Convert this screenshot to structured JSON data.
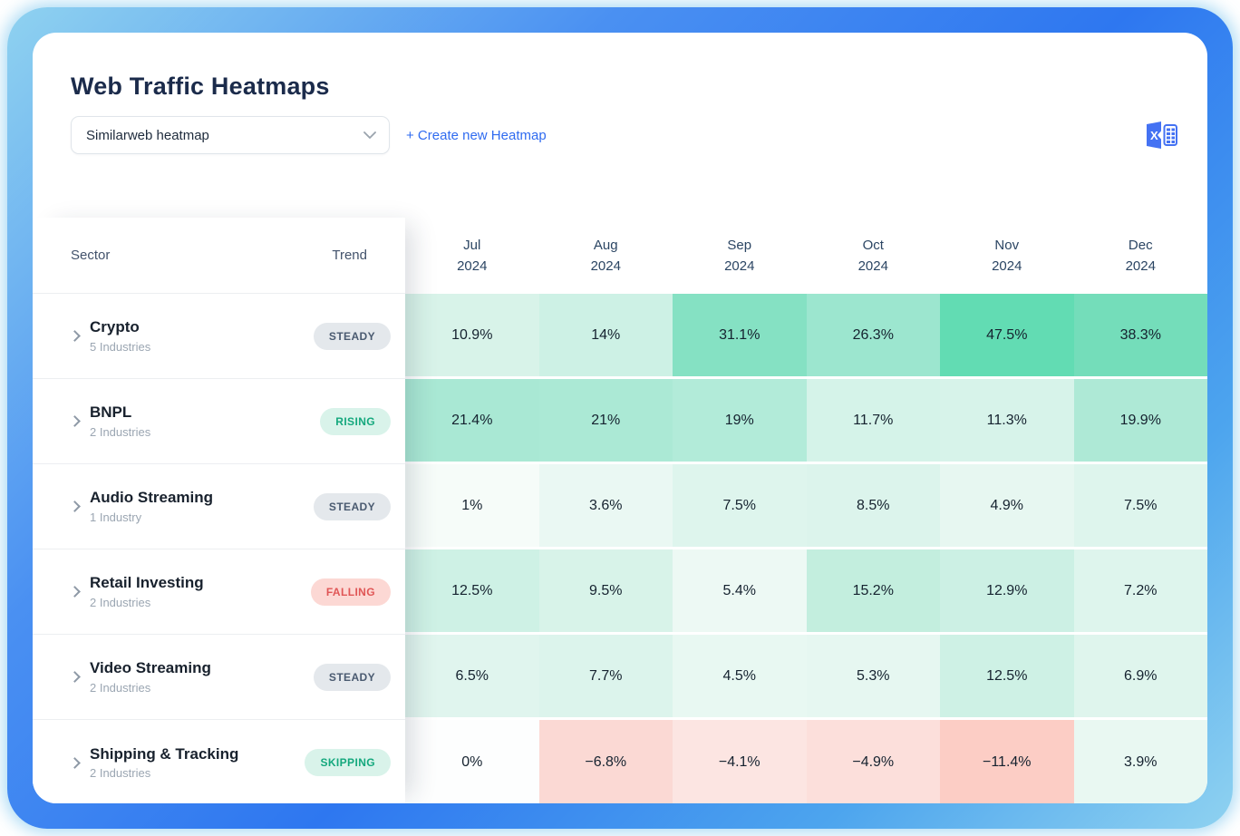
{
  "header": {
    "title": "Web Traffic Heatmaps",
    "selector_value": "Similarweb heatmap",
    "create_link": "+ Create new Heatmap",
    "export_icon": "excel-icon",
    "accent_blue": "#2f6bf0",
    "excel_icon_color": "#4472f3"
  },
  "table": {
    "sector_col_label": "Sector",
    "trend_col_label": "Trend",
    "months": [
      {
        "label": "Jul",
        "year": "2024"
      },
      {
        "label": "Aug",
        "year": "2024"
      },
      {
        "label": "Sep",
        "year": "2024"
      },
      {
        "label": "Oct",
        "year": "2024"
      },
      {
        "label": "Nov",
        "year": "2024"
      },
      {
        "label": "Dec",
        "year": "2024"
      }
    ],
    "rows": [
      {
        "sector": "Crypto",
        "industries": "5 Industries",
        "trend": {
          "label": "STEADY",
          "type": "steady"
        },
        "cells": [
          {
            "value": "10.9%",
            "color": "#d8f3e9"
          },
          {
            "value": "14%",
            "color": "#cdf1e5"
          },
          {
            "value": "31.1%",
            "color": "#85e1c3"
          },
          {
            "value": "26.3%",
            "color": "#9ce6cf"
          },
          {
            "value": "47.5%",
            "color": "#62dcb3"
          },
          {
            "value": "38.3%",
            "color": "#74ddba"
          }
        ]
      },
      {
        "sector": "BNPL",
        "industries": "2 Industries",
        "trend": {
          "label": "RISING",
          "type": "rising"
        },
        "cells": [
          {
            "value": "21.4%",
            "color": "#a9e8d4"
          },
          {
            "value": "21%",
            "color": "#abe9d5"
          },
          {
            "value": "19%",
            "color": "#b2ebd9"
          },
          {
            "value": "11.7%",
            "color": "#d5f3e9"
          },
          {
            "value": "11.3%",
            "color": "#d7f3ea"
          },
          {
            "value": "19.9%",
            "color": "#aee9d6"
          }
        ]
      },
      {
        "sector": "Audio Streaming",
        "industries": "1 Industry",
        "trend": {
          "label": "STEADY",
          "type": "steady"
        },
        "cells": [
          {
            "value": "1%",
            "color": "#f6fcf9"
          },
          {
            "value": "3.6%",
            "color": "#eaf8f3"
          },
          {
            "value": "7.5%",
            "color": "#def5ed"
          },
          {
            "value": "8.5%",
            "color": "#dcf4ec"
          },
          {
            "value": "4.9%",
            "color": "#e7f7f1"
          },
          {
            "value": "7.5%",
            "color": "#def5ed"
          }
        ]
      },
      {
        "sector": "Retail Investing",
        "industries": "2 Industries",
        "trend": {
          "label": "FALLING",
          "type": "falling"
        },
        "cells": [
          {
            "value": "12.5%",
            "color": "#cef1e5"
          },
          {
            "value": "9.5%",
            "color": "#d8f3e9"
          },
          {
            "value": "5.4%",
            "color": "#edf9f4"
          },
          {
            "value": "15.2%",
            "color": "#c3eede"
          },
          {
            "value": "12.9%",
            "color": "#ccf0e4"
          },
          {
            "value": "7.2%",
            "color": "#def5ed"
          }
        ]
      },
      {
        "sector": "Video Streaming",
        "industries": "2 Industries",
        "trend": {
          "label": "STEADY",
          "type": "steady"
        },
        "cells": [
          {
            "value": "6.5%",
            "color": "#e0f5ee"
          },
          {
            "value": "7.7%",
            "color": "#dcf4ec"
          },
          {
            "value": "4.5%",
            "color": "#e8f8f2"
          },
          {
            "value": "5.3%",
            "color": "#e6f7f1"
          },
          {
            "value": "12.5%",
            "color": "#cef1e5"
          },
          {
            "value": "6.9%",
            "color": "#dff5ed"
          }
        ]
      },
      {
        "sector": "Shipping & Tracking",
        "industries": "2 Industries",
        "trend": {
          "label": "SKIPPING",
          "type": "skipping"
        },
        "cells": [
          {
            "value": "0%",
            "color": "#fdfefe"
          },
          {
            "value": "−6.8%",
            "color": "#fbd9d4"
          },
          {
            "value": "−4.1%",
            "color": "#fce5e2"
          },
          {
            "value": "−4.9%",
            "color": "#fcdfdb"
          },
          {
            "value": "−11.4%",
            "color": "#fccdc5"
          },
          {
            "value": "3.9%",
            "color": "#e9f8f2"
          }
        ]
      }
    ]
  },
  "chart_data": {
    "type": "heatmap",
    "title": "Web Traffic Heatmaps",
    "x_categories": [
      "Jul 2024",
      "Aug 2024",
      "Sep 2024",
      "Oct 2024",
      "Nov 2024",
      "Dec 2024"
    ],
    "series": [
      {
        "name": "Crypto",
        "trend": "STEADY",
        "values": [
          10.9,
          14,
          31.1,
          26.3,
          47.5,
          38.3
        ]
      },
      {
        "name": "BNPL",
        "trend": "RISING",
        "values": [
          21.4,
          21,
          19,
          11.7,
          11.3,
          19.9
        ]
      },
      {
        "name": "Audio Streaming",
        "trend": "STEADY",
        "values": [
          1,
          3.6,
          7.5,
          8.5,
          4.9,
          7.5
        ]
      },
      {
        "name": "Retail Investing",
        "trend": "FALLING",
        "values": [
          12.5,
          9.5,
          5.4,
          15.2,
          12.9,
          7.2
        ]
      },
      {
        "name": "Video Streaming",
        "trend": "STEADY",
        "values": [
          6.5,
          7.7,
          4.5,
          5.3,
          12.5,
          6.9
        ]
      },
      {
        "name": "Shipping & Tracking",
        "trend": "SKIPPING",
        "values": [
          0,
          -6.8,
          -4.1,
          -4.9,
          -11.4,
          3.9
        ]
      }
    ],
    "value_unit": "%",
    "color_scale": {
      "positive": "#62dcb3",
      "zero": "#ffffff",
      "negative": "#fccdc5"
    }
  }
}
